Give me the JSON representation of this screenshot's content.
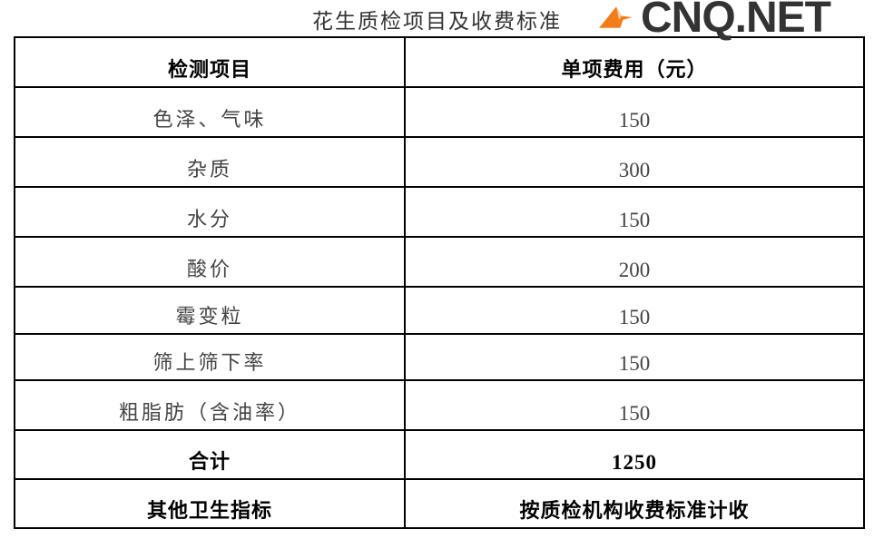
{
  "title": "花生质检项目及收费标准",
  "table": {
    "headers": [
      "检测项目",
      "单项费用（元）"
    ],
    "rows": [
      {
        "item": "色泽、气味",
        "fee": "150"
      },
      {
        "item": "杂质",
        "fee": "300"
      },
      {
        "item": "水分",
        "fee": "150"
      },
      {
        "item": "酸价",
        "fee": "200"
      },
      {
        "item": "霉变粒",
        "fee": "150"
      },
      {
        "item": "筛上筛下率",
        "fee": "150"
      },
      {
        "item": "粗脂肪（含油率）",
        "fee": "150"
      }
    ],
    "total": {
      "label": "合计",
      "value": "1250"
    },
    "other": {
      "label": "其他卫生指标",
      "value": "按质检机构收费标准计收"
    }
  },
  "watermark": {
    "text": "CNQ.NET",
    "accent_color": "#f07d1a"
  }
}
